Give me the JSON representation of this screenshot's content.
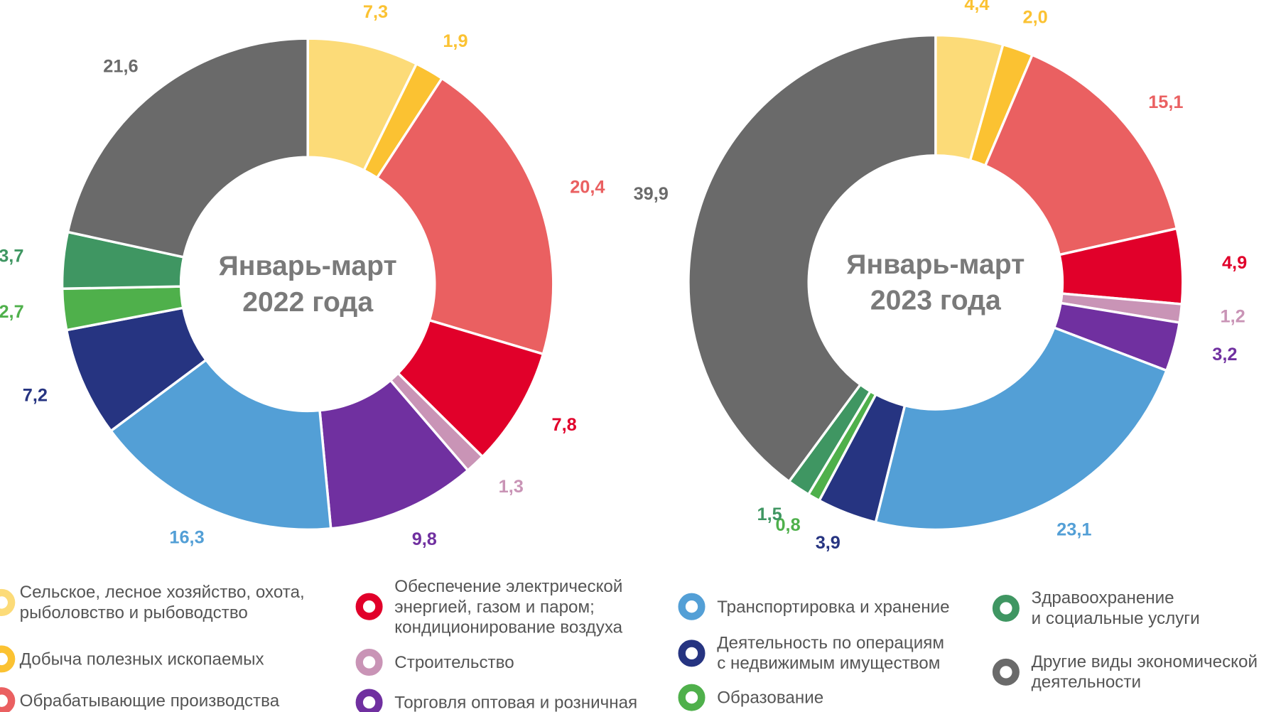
{
  "chart_data": [
    {
      "type": "pie",
      "title": "Январь-март\n2022 года",
      "values": [
        7.3,
        1.9,
        20.4,
        7.8,
        1.3,
        9.8,
        16.3,
        7.2,
        2.7,
        3.7,
        21.6
      ],
      "value_labels": [
        "7,3",
        "1,9",
        "20,4",
        "7,8",
        "1,3",
        "9,8",
        "16,3",
        "7,2",
        "2,7",
        "3,7",
        "21,6"
      ]
    },
    {
      "type": "pie",
      "title": "Январь-март\n2023 года",
      "values": [
        4.4,
        2.0,
        15.1,
        4.9,
        1.2,
        3.2,
        23.1,
        3.9,
        0.8,
        1.5,
        39.9
      ],
      "value_labels": [
        "4,4",
        "2,0",
        "15,1",
        "4,9",
        "1,2",
        "3,2",
        "23,1",
        "3,9",
        "0,8",
        "1,5",
        "39,9"
      ]
    }
  ],
  "legend": {
    "labels": [
      "Сельское, лесное хозяйство, охота,\nрыболовство и рыбоводство",
      "Добыча полезных ископаемых",
      "Обрабатывающие производства",
      "Обеспечение электрической\nэнергией, газом и паром;\nкондиционирование воздуха",
      "Строительство",
      "Торговля оптовая и розничная",
      "Транспортировка и хранение",
      "Деятельность по операциям\nс недвижимым имуществом",
      "Образование",
      "Здравоохранение\nи социальные услуги",
      "Другие виды экономической\nдеятельности"
    ],
    "colors": [
      "#fcdb78",
      "#fbc232",
      "#ea6061",
      "#e1002a",
      "#c994b6",
      "#7030a0",
      "#539fd6",
      "#263481",
      "#4fb04b",
      "#3f9662",
      "#6a6a6a"
    ]
  }
}
